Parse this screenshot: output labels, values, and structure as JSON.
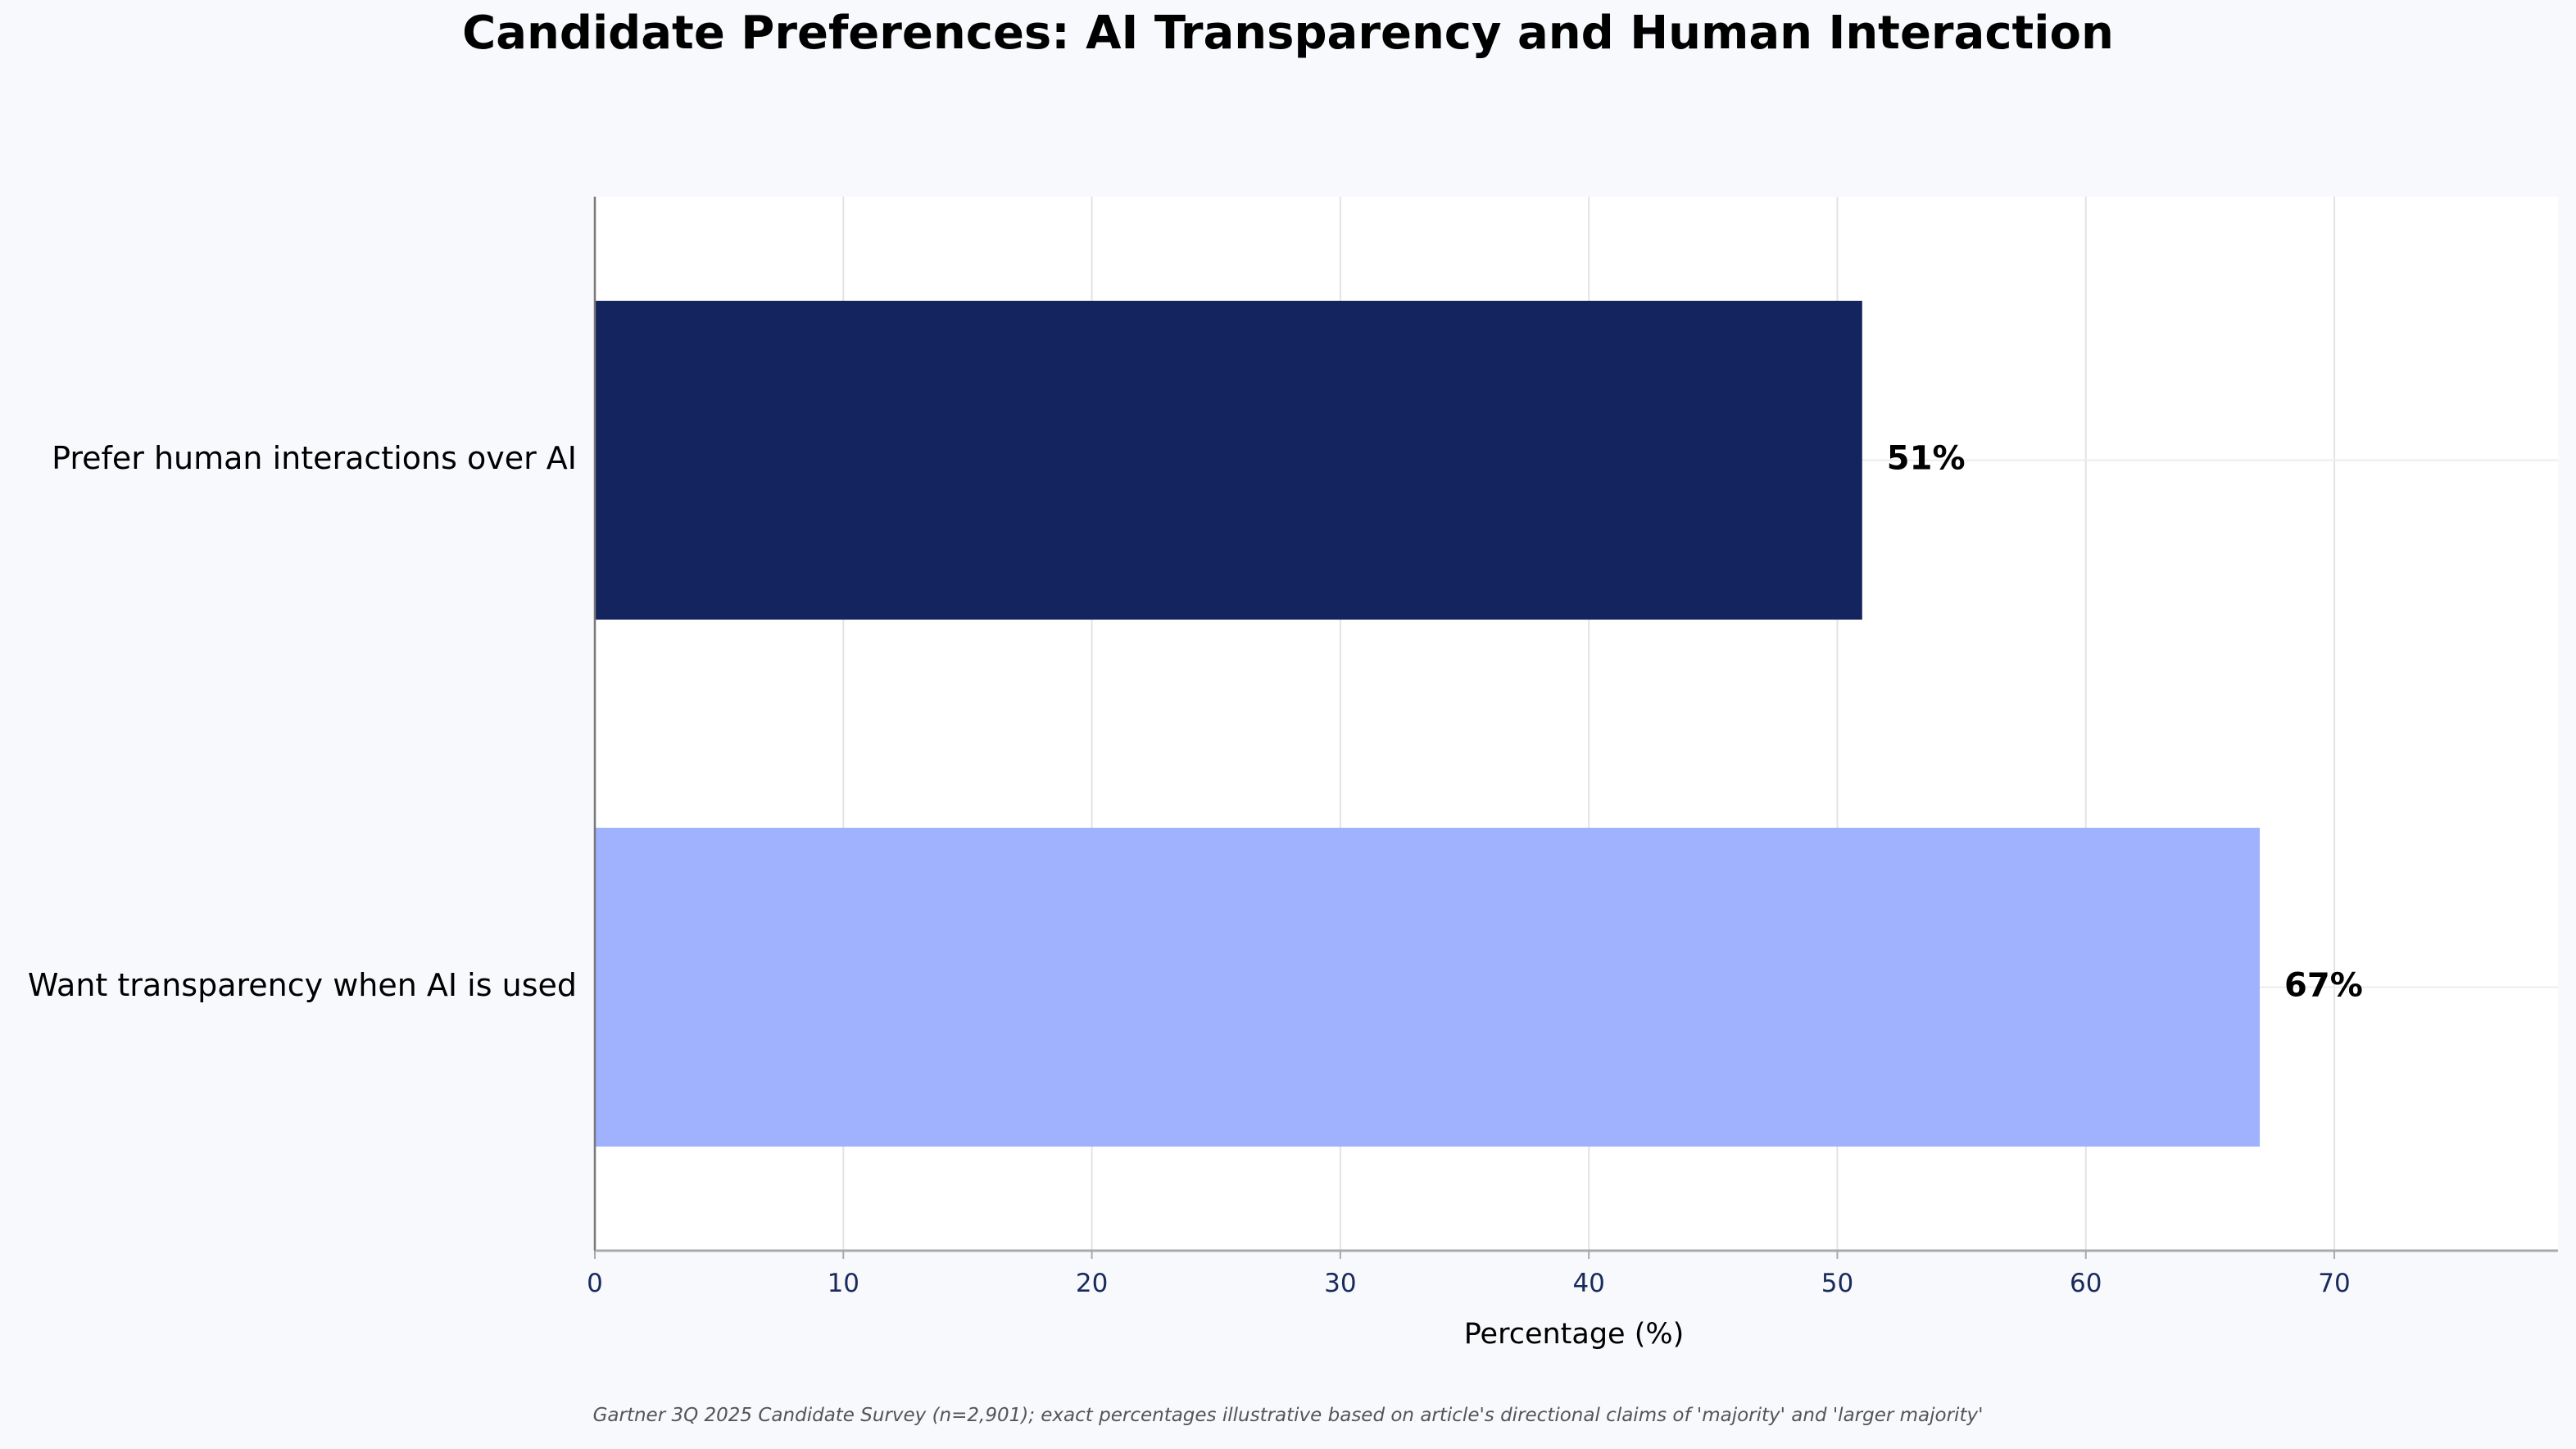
{
  "chart_data": {
    "type": "bar",
    "orientation": "horizontal",
    "title": "Candidate Preferences: AI Transparency and Human Interaction",
    "xlabel": "Percentage (%)",
    "ylabel": "",
    "categories": [
      "Prefer human interactions over AI",
      "Want transparency when AI is used"
    ],
    "values": [
      51,
      67
    ],
    "value_labels": [
      "51%",
      "67%"
    ],
    "colors": [
      "#14245e",
      "#a0b1fd"
    ],
    "xlim": [
      0,
      79
    ],
    "xticks": [
      0,
      10,
      20,
      30,
      40,
      50,
      60,
      70
    ],
    "grid": true,
    "plot_background": "#ffffff",
    "page_background": "#f7f9fc"
  },
  "footnote": "Gartner 3Q 2025 Candidate Survey (n=2,901); exact percentages illustrative based on article's directional claims of 'majority' and 'larger majority'"
}
